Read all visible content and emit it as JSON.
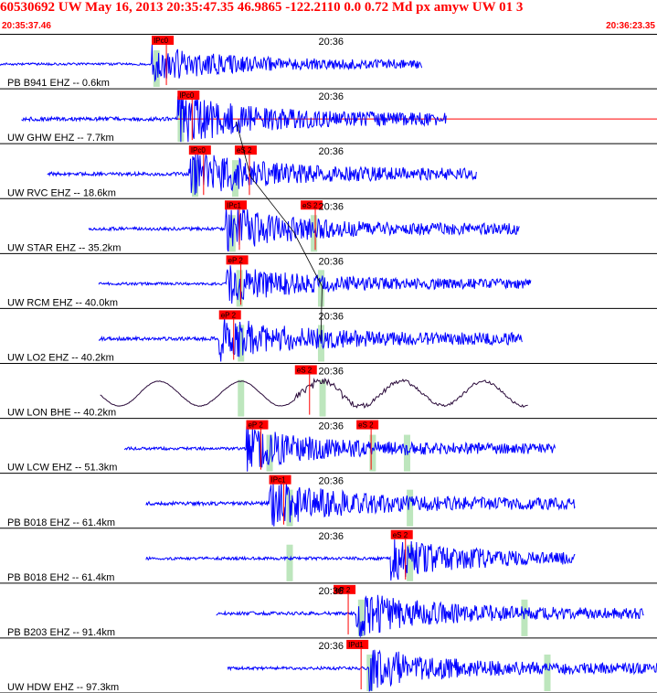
{
  "header": {
    "title": "60530692 UW May 16, 2013 20:35:47.35   46.9865 -122.2110  0.0 0.72 Md px amyw UW 01   3",
    "start_time": "20:35:37.46",
    "end_time": "20:36:23.35"
  },
  "colors": {
    "title": "#ff0000",
    "trace": "#0000ff",
    "trace_broadband": "#2a0a3a",
    "pick_box": "#ff0000",
    "pick_window": "#bde6bd",
    "grid": "#000000",
    "travel_curve": "#000000"
  },
  "chart_data": {
    "type": "line",
    "time_axis": {
      "start": "20:35:37.46",
      "end": "20:36:23.35",
      "minute_label": "20:36"
    },
    "traces": [
      {
        "label": "PB B941 EHZ -- 0.6km",
        "picks": [
          {
            "phase": "IPc0",
            "time_s": 10.6
          }
        ],
        "green_windows_s": [
          10.9
        ],
        "start_s": 0,
        "end_s": 29.5,
        "onset_s": 10.6,
        "amplitude": 0.35,
        "broadband": false,
        "red_baseline": false
      },
      {
        "label": "UW GHW EHZ -- 7.7km",
        "picks": [
          {
            "phase": "IPc0",
            "time_s": 12.4
          }
        ],
        "green_windows_s": [
          12.6
        ],
        "start_s": 1.5,
        "end_s": 31.2,
        "onset_s": 12.4,
        "amplitude": 0.6,
        "broadband": false,
        "red_baseline": true
      },
      {
        "label": "UW RVC EHZ -- 18.6km",
        "picks": [
          {
            "phase": "IPc0",
            "time_s": 13.2
          },
          {
            "phase": "eS 2",
            "time_s": 16.4
          }
        ],
        "green_windows_s": [
          13.6,
          16.4
        ],
        "start_s": 3.3,
        "end_s": 33.3,
        "onset_s": 13.2,
        "amplitude": 0.55,
        "broadband": false,
        "red_baseline": false
      },
      {
        "label": "UW STAR EHZ -- 35.2km",
        "picks": [
          {
            "phase": "IPc1",
            "time_s": 15.7
          },
          {
            "phase": "eS 2",
            "time_s": 21.0
          }
        ],
        "green_windows_s": [
          16.2,
          21.9
        ],
        "start_s": 6.2,
        "end_s": 36.3,
        "onset_s": 15.7,
        "amplitude": 0.5,
        "broadband": false,
        "red_baseline": false
      },
      {
        "label": "UW RCM EHZ -- 40.0km",
        "picks": [
          {
            "phase": "eP 2",
            "time_s": 15.8
          }
        ],
        "green_windows_s": [
          16.7,
          22.4
        ],
        "start_s": 6.9,
        "end_s": 37.1,
        "onset_s": 15.8,
        "amplitude": 0.4,
        "broadband": false,
        "red_baseline": false
      },
      {
        "label": "UW LO2 EHZ -- 40.2km",
        "picks": [
          {
            "phase": "eP 2",
            "time_s": 15.3
          }
        ],
        "green_windows_s": [
          16.8,
          22.4
        ],
        "start_s": 6.9,
        "end_s": 36.5,
        "onset_s": 15.3,
        "amplitude": 0.55,
        "broadband": false,
        "red_baseline": false
      },
      {
        "label": "UW LON BHE -- 40.2km",
        "picks": [
          {
            "phase": "eS 2",
            "time_s": 20.6
          }
        ],
        "green_windows_s": [
          16.8,
          22.5
        ],
        "start_s": 7.0,
        "end_s": 36.9,
        "onset_s": 20.6,
        "amplitude": 0.4,
        "broadband": true,
        "red_baseline": false
      },
      {
        "label": "UW LCW EHZ -- 51.3km",
        "picks": [
          {
            "phase": "eP 2",
            "time_s": 17.2
          },
          {
            "phase": "eS 2",
            "time_s": 24.9
          }
        ],
        "green_windows_s": [
          18.8,
          26.0,
          28.4
        ],
        "start_s": 8.7,
        "end_s": 38.8,
        "onset_s": 17.2,
        "amplitude": 0.45,
        "broadband": false,
        "red_baseline": false
      },
      {
        "label": "PB B018 EHZ -- 61.4km",
        "picks": [
          {
            "phase": "IPc1",
            "time_s": 18.8
          }
        ],
        "green_windows_s": [
          20.2,
          28.6
        ],
        "start_s": 10.2,
        "end_s": 40.2,
        "onset_s": 18.8,
        "amplitude": 0.55,
        "broadband": false,
        "red_baseline": false
      },
      {
        "label": "PB B018 EH2 -- 61.4km",
        "picks": [
          {
            "phase": "eS 2",
            "time_s": 27.3
          }
        ],
        "green_windows_s": [
          20.2,
          28.6
        ],
        "start_s": 10.2,
        "end_s": 40.2,
        "onset_s": 27.3,
        "amplitude": 0.45,
        "broadband": false,
        "red_baseline": false
      },
      {
        "label": "PB B203 EHZ -- 91.4km",
        "picks": [
          {
            "phase": "eP 2",
            "time_s": 23.3
          }
        ],
        "green_windows_s": [
          25.2,
          36.6
        ],
        "start_s": 15.1,
        "end_s": 45.0,
        "onset_s": 24.9,
        "amplitude": 0.5,
        "broadband": false,
        "red_baseline": false
      },
      {
        "label": "UW HDW EHZ -- 97.3km",
        "picks": [
          {
            "phase": "IPd1",
            "time_s": 24.2
          }
        ],
        "green_windows_s": [
          25.8,
          38.2
        ],
        "start_s": 15.9,
        "end_s": 45.9,
        "onset_s": 25.8,
        "amplitude": 0.45,
        "broadband": false,
        "red_baseline": false
      }
    ],
    "minute_mark_s": 22.5,
    "grid": true
  }
}
